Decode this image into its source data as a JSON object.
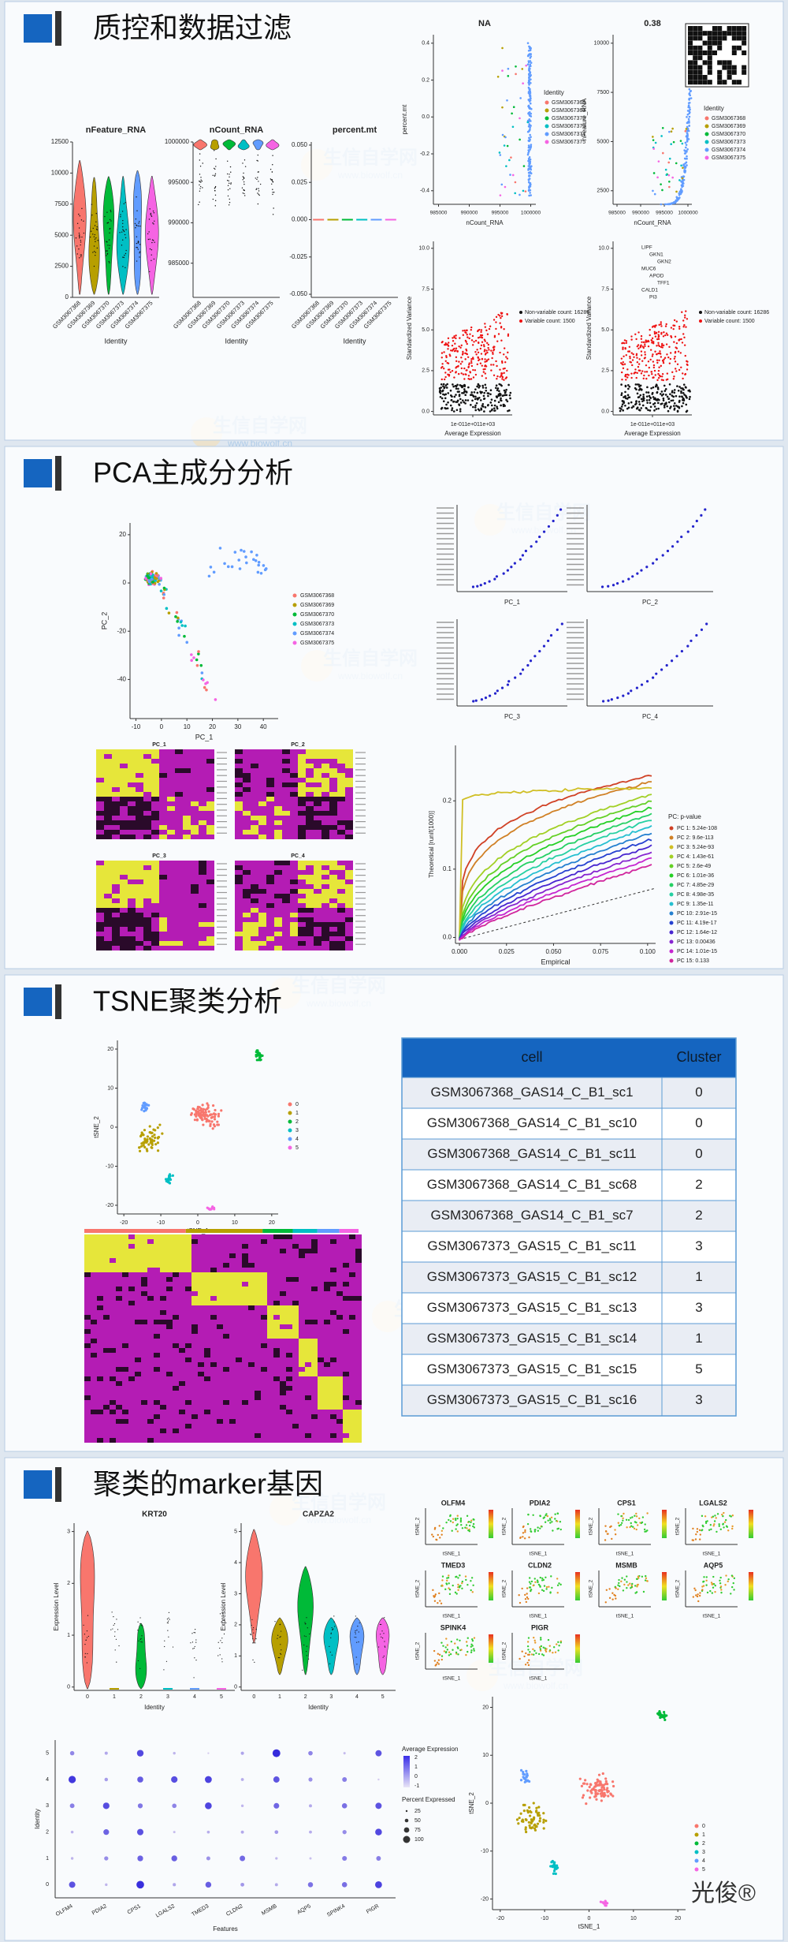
{
  "watermark": {
    "name": "生信自学网",
    "url": "www.biowolf.cn"
  },
  "sections": [
    {
      "heading": "质控和数据过滤",
      "identities": [
        "GSM3067368",
        "GSM3067369",
        "GSM3067370",
        "GSM3067373",
        "GSM3067374",
        "GSM3067375"
      ],
      "xlabel": "Identity",
      "violins": [
        {
          "title": "nFeature_RNA",
          "yticks": [
            "12500",
            "10000",
            "7500",
            "5000",
            "2500",
            "0"
          ]
        },
        {
          "title": "nCount_RNA",
          "yticks": [
            "1000000",
            "995000",
            "990000",
            "985000"
          ]
        },
        {
          "title": "percent.mt",
          "yticks": [
            "0.050",
            "0.025",
            "0.000",
            "-0.025",
            "-0.050"
          ]
        }
      ],
      "scatters": [
        {
          "title": "NA",
          "ylabel": "percent.mt",
          "xlabel": "nCount_RNA",
          "yticks": [
            "0.4",
            "0.2",
            "0.0",
            "-0.2",
            "-0.4"
          ],
          "xticks": [
            "985000",
            "990000",
            "995000",
            "1000000"
          ]
        },
        {
          "title": "0.38",
          "ylabel": "nFeature_RNA",
          "xlabel": "nCount_RNA",
          "yticks": [
            "10000",
            "7500",
            "5000",
            "2500"
          ],
          "xticks": [
            "985000",
            "990000",
            "995000",
            "1000000"
          ]
        }
      ],
      "legend_title": "Identity",
      "variance": {
        "ylabel": "Standardized Variance",
        "xlabel": "Average Expression",
        "xtick": "1e-011e+011e+03",
        "yticks": [
          "10.0",
          "7.5",
          "5.0",
          "2.5",
          "0.0"
        ],
        "legend": [
          "Non-variable count: 16286",
          "Variable count: 1500"
        ],
        "genes": [
          "LIPF",
          "GKN1",
          "GKN2",
          "MUC6",
          "APOD",
          "TFF1",
          "CALD1",
          "PI3"
        ]
      }
    },
    {
      "heading": "PCA主成分分析",
      "pca": {
        "xlabel": "PC_1",
        "ylabel": "PC_2",
        "xticks": [
          "-10",
          "0",
          "10",
          "20",
          "30",
          "40"
        ],
        "yticks": [
          "20",
          "0",
          "-20",
          "-40"
        ]
      },
      "loadings": [
        "PC_1",
        "PC_2",
        "PC_3",
        "PC_4"
      ],
      "heatmaps": [
        "PC_1",
        "PC_2",
        "PC_3",
        "PC_4"
      ],
      "jackstraw": {
        "ylabel": "Theoretical [runif(1000)]",
        "xlabel": "Empirical",
        "xticks": [
          "0.000",
          "0.025",
          "0.050",
          "0.075",
          "0.100"
        ],
        "yticks": [
          "0.2",
          "0.1",
          "0.0"
        ],
        "legend_title": "PC: p-value",
        "legend": [
          "PC 1: 5.24e-108",
          "PC 2: 9.6e-113",
          "PC 3: 5.24e-93",
          "PC 4: 1.43e-61",
          "PC 5: 2.6e-49",
          "PC 6: 1.01e-36",
          "PC 7: 4.85e-29",
          "PC 8: 4.98e-35",
          "PC 9: 1.35e-11",
          "PC 10: 2.91e-15",
          "PC 11: 4.19e-17",
          "PC 12: 1.64e-12",
          "PC 13: 0.00436",
          "PC 14: 1.01e-15",
          "PC 15: 0.133"
        ]
      }
    },
    {
      "heading": "TSNE聚类分析",
      "tsne": {
        "xlabel": "tSNE_1",
        "ylabel": "tSNE_2",
        "xticks": [
          "-20",
          "-10",
          "0",
          "10",
          "20"
        ],
        "yticks": [
          "20",
          "10",
          "0",
          "-10",
          "-20"
        ],
        "clusters": [
          "0",
          "1",
          "2",
          "3",
          "4",
          "5"
        ]
      },
      "table": {
        "header": [
          "cell",
          "Cluster"
        ],
        "rows": [
          [
            "GSM3067368_GAS14_C_B1_sc1",
            "0"
          ],
          [
            "GSM3067368_GAS14_C_B1_sc10",
            "0"
          ],
          [
            "GSM3067368_GAS14_C_B1_sc11",
            "0"
          ],
          [
            "GSM3067368_GAS14_C_B1_sc68",
            "2"
          ],
          [
            "GSM3067368_GAS14_C_B1_sc7",
            "2"
          ],
          [
            "GSM3067373_GAS15_C_B1_sc11",
            "3"
          ],
          [
            "GSM3067373_GAS15_C_B1_sc12",
            "1"
          ],
          [
            "GSM3067373_GAS15_C_B1_sc13",
            "3"
          ],
          [
            "GSM3067373_GAS15_C_B1_sc14",
            "1"
          ],
          [
            "GSM3067373_GAS15_C_B1_sc15",
            "5"
          ],
          [
            "GSM3067373_GAS15_C_B1_sc16",
            "3"
          ]
        ]
      }
    },
    {
      "heading": "聚类的marker基因",
      "violins": [
        {
          "title": "KRT20",
          "yticks": [
            "3",
            "2",
            "1",
            "0"
          ]
        },
        {
          "title": "CAPZA2",
          "yticks": [
            "5",
            "4",
            "3",
            "2",
            "1",
            "0"
          ]
        }
      ],
      "ylabel": "Expression Level",
      "xlabel": "Identity",
      "features": [
        "OLFM4",
        "PDIA2",
        "CPS1",
        "LGALS2",
        "TMED3",
        "CLDN2",
        "MSMB",
        "AQP5",
        "SPINK4",
        "PIGR"
      ],
      "dotplot": {
        "xlabel": "Features",
        "ylabel": "Identity",
        "legend_avg": "Average Expression",
        "avg_ticks": [
          "2",
          "1",
          "0",
          "-1"
        ],
        "legend_pct": "Percent Expressed",
        "pct": [
          "25",
          "50",
          "75",
          "100"
        ]
      },
      "signature": "光俊®"
    }
  ]
}
